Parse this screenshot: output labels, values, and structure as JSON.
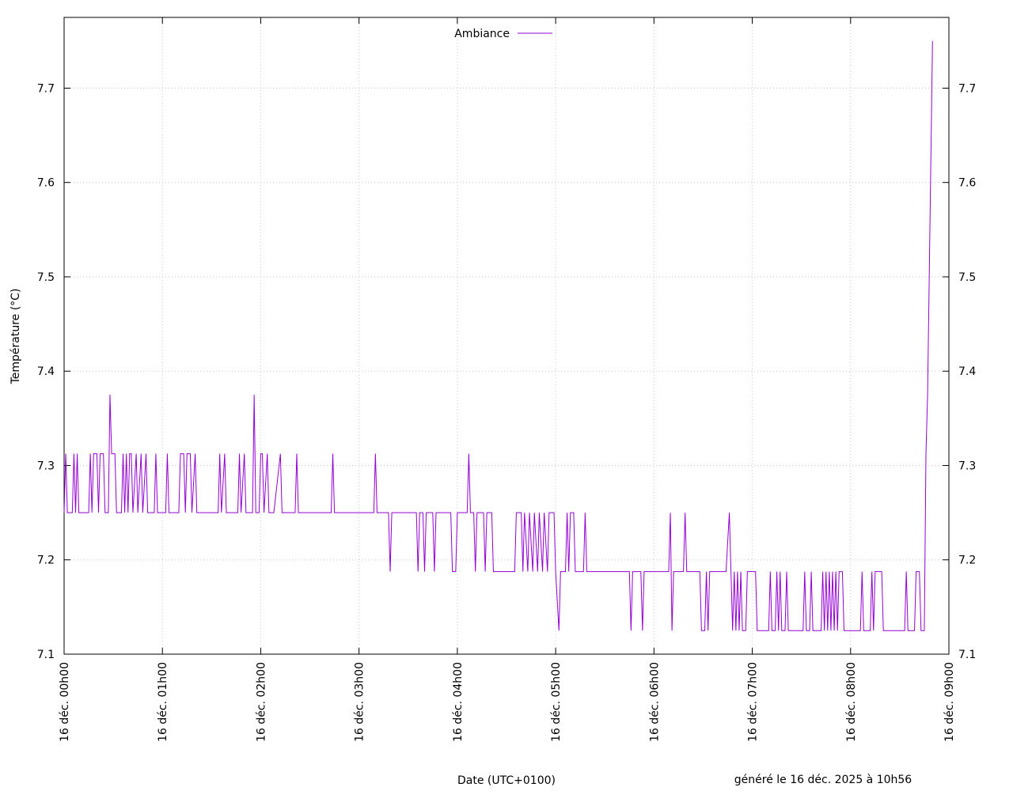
{
  "chart_data": {
    "type": "line",
    "ylabel": "Température (°C)",
    "xlabel": "Date (UTC+0100)",
    "footnote": "généré le 16 déc. 2025 à 10h56",
    "legend": "top center",
    "grid": true,
    "xlim": [
      "16 déc. 00h00",
      "16 déc. 09h00"
    ],
    "xticks": [
      "16 déc. 00h00",
      "16 déc. 01h00",
      "16 déc. 02h00",
      "16 déc. 03h00",
      "16 déc. 04h00",
      "16 déc. 05h00",
      "16 déc. 06h00",
      "16 déc. 07h00",
      "16 déc. 08h00",
      "16 déc. 09h00"
    ],
    "ylim": [
      7.1,
      7.775
    ],
    "yticks": [
      7.1,
      7.2,
      7.3,
      7.4,
      7.5,
      7.6,
      7.7
    ],
    "x": [
      "16 déc. 00h00",
      "16 déc. 00h01",
      "16 déc. 00h02",
      "16 déc. 00h05",
      "16 déc. 00h06",
      "16 déc. 00h07",
      "16 déc. 00h08",
      "16 déc. 00h09",
      "16 déc. 00h15",
      "16 déc. 00h16",
      "16 déc. 00h17",
      "16 déc. 00h18",
      "16 déc. 00h20",
      "16 déc. 00h21",
      "16 déc. 00h22",
      "16 déc. 00h24",
      "16 déc. 00h25",
      "16 déc. 00h27",
      "16 déc. 00h28",
      "16 déc. 00h29",
      "16 déc. 00h31",
      "16 déc. 00h32",
      "16 déc. 00h35",
      "16 déc. 00h36",
      "16 déc. 00h37",
      "16 déc. 00h38",
      "16 déc. 00h39",
      "16 déc. 00h40",
      "16 déc. 00h41",
      "16 déc. 00h42",
      "16 déc. 00h44",
      "16 déc. 00h45",
      "16 déc. 00h47",
      "16 déc. 00h48",
      "16 déc. 00h50",
      "16 déc. 00h51",
      "16 déc. 00h55",
      "16 déc. 00h56",
      "16 déc. 00h57",
      "16 déc. 01h02",
      "16 déc. 01h03",
      "16 déc. 01h04",
      "16 déc. 01h10",
      "16 déc. 01h11",
      "16 déc. 01h13",
      "16 déc. 01h14",
      "16 déc. 01h15",
      "16 déc. 01h17",
      "16 déc. 01h18",
      "16 déc. 01h20",
      "16 déc. 01h21",
      "16 déc. 01h34",
      "16 déc. 01h35",
      "16 déc. 01h36",
      "16 déc. 01h38",
      "16 déc. 01h39",
      "16 déc. 01h46",
      "16 déc. 01h47",
      "16 déc. 01h48",
      "16 déc. 01h50",
      "16 déc. 01h51",
      "16 déc. 01h55",
      "16 déc. 01h56",
      "16 déc. 01h57",
      "16 déc. 01h59",
      "16 déc. 02h00",
      "16 déc. 02h01",
      "16 déc. 02h02",
      "16 déc. 02h04",
      "16 déc. 02h05",
      "16 déc. 02h08",
      "16 déc. 02h12",
      "16 déc. 02h13",
      "16 déc. 02h21",
      "16 déc. 02h22",
      "16 déc. 02h23",
      "16 déc. 02h43",
      "16 déc. 02h44",
      "16 déc. 02h45",
      "16 déc. 03h09",
      "16 déc. 03h10",
      "16 déc. 03h11",
      "16 déc. 03h18",
      "16 déc. 03h19",
      "16 déc. 03h20",
      "16 déc. 03h35",
      "16 déc. 03h36",
      "16 déc. 03h37",
      "16 déc. 03h39",
      "16 déc. 03h40",
      "16 déc. 03h41",
      "16 déc. 03h45",
      "16 déc. 03h46",
      "16 déc. 03h47",
      "16 déc. 03h56",
      "16 déc. 03h57",
      "16 déc. 03h59",
      "16 déc. 04h00",
      "16 déc. 04h06",
      "16 déc. 04h07",
      "16 déc. 04h08",
      "16 déc. 04h10",
      "16 déc. 04h11",
      "16 déc. 04h12",
      "16 déc. 04h16",
      "16 déc. 04h17",
      "16 déc. 04h18",
      "16 déc. 04h21",
      "16 déc. 04h22",
      "16 déc. 04h35",
      "16 déc. 04h36",
      "16 déc. 04h39",
      "16 déc. 04h40",
      "16 déc. 04h41",
      "16 déc. 04h43",
      "16 déc. 04h44",
      "16 déc. 04h46",
      "16 déc. 04h47",
      "16 déc. 04h49",
      "16 déc. 04h50",
      "16 déc. 04h52",
      "16 déc. 04h53",
      "16 déc. 04h55",
      "16 déc. 04h56",
      "16 déc. 04h59",
      "16 déc. 05h00",
      "16 déc. 05h02",
      "16 déc. 05h03",
      "16 déc. 05h06",
      "16 déc. 05h07",
      "16 déc. 05h08",
      "16 déc. 05h09",
      "16 déc. 05h11",
      "16 déc. 05h12",
      "16 déc. 05h17",
      "16 déc. 05h18",
      "16 déc. 05h19",
      "16 déc. 05h45",
      "16 déc. 05h46",
      "16 déc. 05h47",
      "16 déc. 05h52",
      "16 déc. 05h53",
      "16 déc. 05h54",
      "16 déc. 06h09",
      "16 déc. 06h10",
      "16 déc. 06h11",
      "16 déc. 06h12",
      "16 déc. 06h18",
      "16 déc. 06h19",
      "16 déc. 06h20",
      "16 déc. 06h28",
      "16 déc. 06h29",
      "16 déc. 06h31",
      "16 déc. 06h32",
      "16 déc. 06h33",
      "16 déc. 06h34",
      "16 déc. 06h44",
      "16 déc. 06h46",
      "16 déc. 06h48",
      "16 déc. 06h49",
      "16 déc. 06h50",
      "16 déc. 06h51",
      "16 déc. 06h52",
      "16 déc. 06h53",
      "16 déc. 06h54",
      "16 déc. 06h56",
      "16 déc. 06h57",
      "16 déc. 07h02",
      "16 déc. 07h03",
      "16 déc. 07h10",
      "16 déc. 07h11",
      "16 déc. 07h12",
      "16 déc. 07h14",
      "16 déc. 07h15",
      "16 déc. 07h16",
      "16 déc. 07h17",
      "16 déc. 07h18",
      "16 déc. 07h20",
      "16 déc. 07h21",
      "16 déc. 07h22",
      "16 déc. 07h31",
      "16 déc. 07h32",
      "16 déc. 07h33",
      "16 déc. 07h35",
      "16 déc. 07h36",
      "16 déc. 07h37",
      "16 déc. 07h42",
      "16 déc. 07h43",
      "16 déc. 07h44",
      "16 déc. 07h45",
      "16 déc. 07h46",
      "16 déc. 07h47",
      "16 déc. 07h48",
      "16 déc. 07h49",
      "16 déc. 07h50",
      "16 déc. 07h51",
      "16 déc. 07h52",
      "16 déc. 07h53",
      "16 déc. 07h55",
      "16 déc. 07h56",
      "16 déc. 08h06",
      "16 déc. 08h07",
      "16 déc. 08h08",
      "16 déc. 08h12",
      "16 déc. 08h13",
      "16 déc. 08h14",
      "16 déc. 08h15",
      "16 déc. 08h19",
      "16 déc. 08h20",
      "16 déc. 08h33",
      "16 déc. 08h34",
      "16 déc. 08h35",
      "16 déc. 08h39",
      "16 déc. 08h40",
      "16 déc. 08h42",
      "16 déc. 08h43",
      "16 déc. 08h45",
      "16 déc. 08h46",
      "16 déc. 08h47",
      "16 déc. 08h50"
    ],
    "series": [
      {
        "name": "Ambiance",
        "color": "#9400d3",
        "values": [
          7.25,
          7.3125,
          7.25,
          7.25,
          7.3125,
          7.25,
          7.3125,
          7.25,
          7.25,
          7.3125,
          7.25,
          7.3125,
          7.3125,
          7.25,
          7.3125,
          7.3125,
          7.25,
          7.25,
          7.375,
          7.3125,
          7.3125,
          7.25,
          7.25,
          7.3125,
          7.25,
          7.3125,
          7.25,
          7.3125,
          7.3125,
          7.25,
          7.3125,
          7.25,
          7.3125,
          7.25,
          7.3125,
          7.25,
          7.25,
          7.3125,
          7.25,
          7.25,
          7.3125,
          7.25,
          7.25,
          7.3125,
          7.3125,
          7.25,
          7.3125,
          7.3125,
          7.25,
          7.3125,
          7.25,
          7.25,
          7.3125,
          7.25,
          7.3125,
          7.25,
          7.25,
          7.3125,
          7.25,
          7.3125,
          7.25,
          7.25,
          7.375,
          7.25,
          7.25,
          7.3125,
          7.3125,
          7.25,
          7.3125,
          7.25,
          7.25,
          7.3125,
          7.25,
          7.25,
          7.3125,
          7.25,
          7.25,
          7.3125,
          7.25,
          7.25,
          7.3125,
          7.25,
          7.25,
          7.1875,
          7.25,
          7.25,
          7.1875,
          7.25,
          7.25,
          7.1875,
          7.25,
          7.25,
          7.1875,
          7.25,
          7.25,
          7.1875,
          7.1875,
          7.25,
          7.25,
          7.3125,
          7.25,
          7.25,
          7.1875,
          7.25,
          7.25,
          7.1875,
          7.25,
          7.25,
          7.1875,
          7.1875,
          7.25,
          7.25,
          7.1875,
          7.25,
          7.1875,
          7.25,
          7.1875,
          7.25,
          7.1875,
          7.25,
          7.1875,
          7.25,
          7.1875,
          7.25,
          7.25,
          7.1875,
          7.125,
          7.1875,
          7.1875,
          7.25,
          7.1875,
          7.25,
          7.25,
          7.1875,
          7.1875,
          7.25,
          7.1875,
          7.1875,
          7.125,
          7.1875,
          7.1875,
          7.125,
          7.1875,
          7.1875,
          7.25,
          7.125,
          7.1875,
          7.1875,
          7.25,
          7.1875,
          7.1875,
          7.125,
          7.125,
          7.1875,
          7.125,
          7.1875,
          7.1875,
          7.25,
          7.125,
          7.1875,
          7.125,
          7.1875,
          7.125,
          7.1875,
          7.125,
          7.125,
          7.1875,
          7.1875,
          7.125,
          7.125,
          7.1875,
          7.125,
          7.125,
          7.1875,
          7.125,
          7.1875,
          7.125,
          7.125,
          7.1875,
          7.125,
          7.125,
          7.1875,
          7.125,
          7.125,
          7.1875,
          7.125,
          7.125,
          7.1875,
          7.125,
          7.1875,
          7.125,
          7.1875,
          7.125,
          7.1875,
          7.125,
          7.1875,
          7.125,
          7.1875,
          7.1875,
          7.125,
          7.125,
          7.1875,
          7.125,
          7.125,
          7.1875,
          7.125,
          7.1875,
          7.1875,
          7.125,
          7.125,
          7.1875,
          7.125,
          7.125,
          7.1875,
          7.1875,
          7.125,
          7.125,
          7.3125,
          7.375,
          7.75
        ]
      }
    ]
  }
}
